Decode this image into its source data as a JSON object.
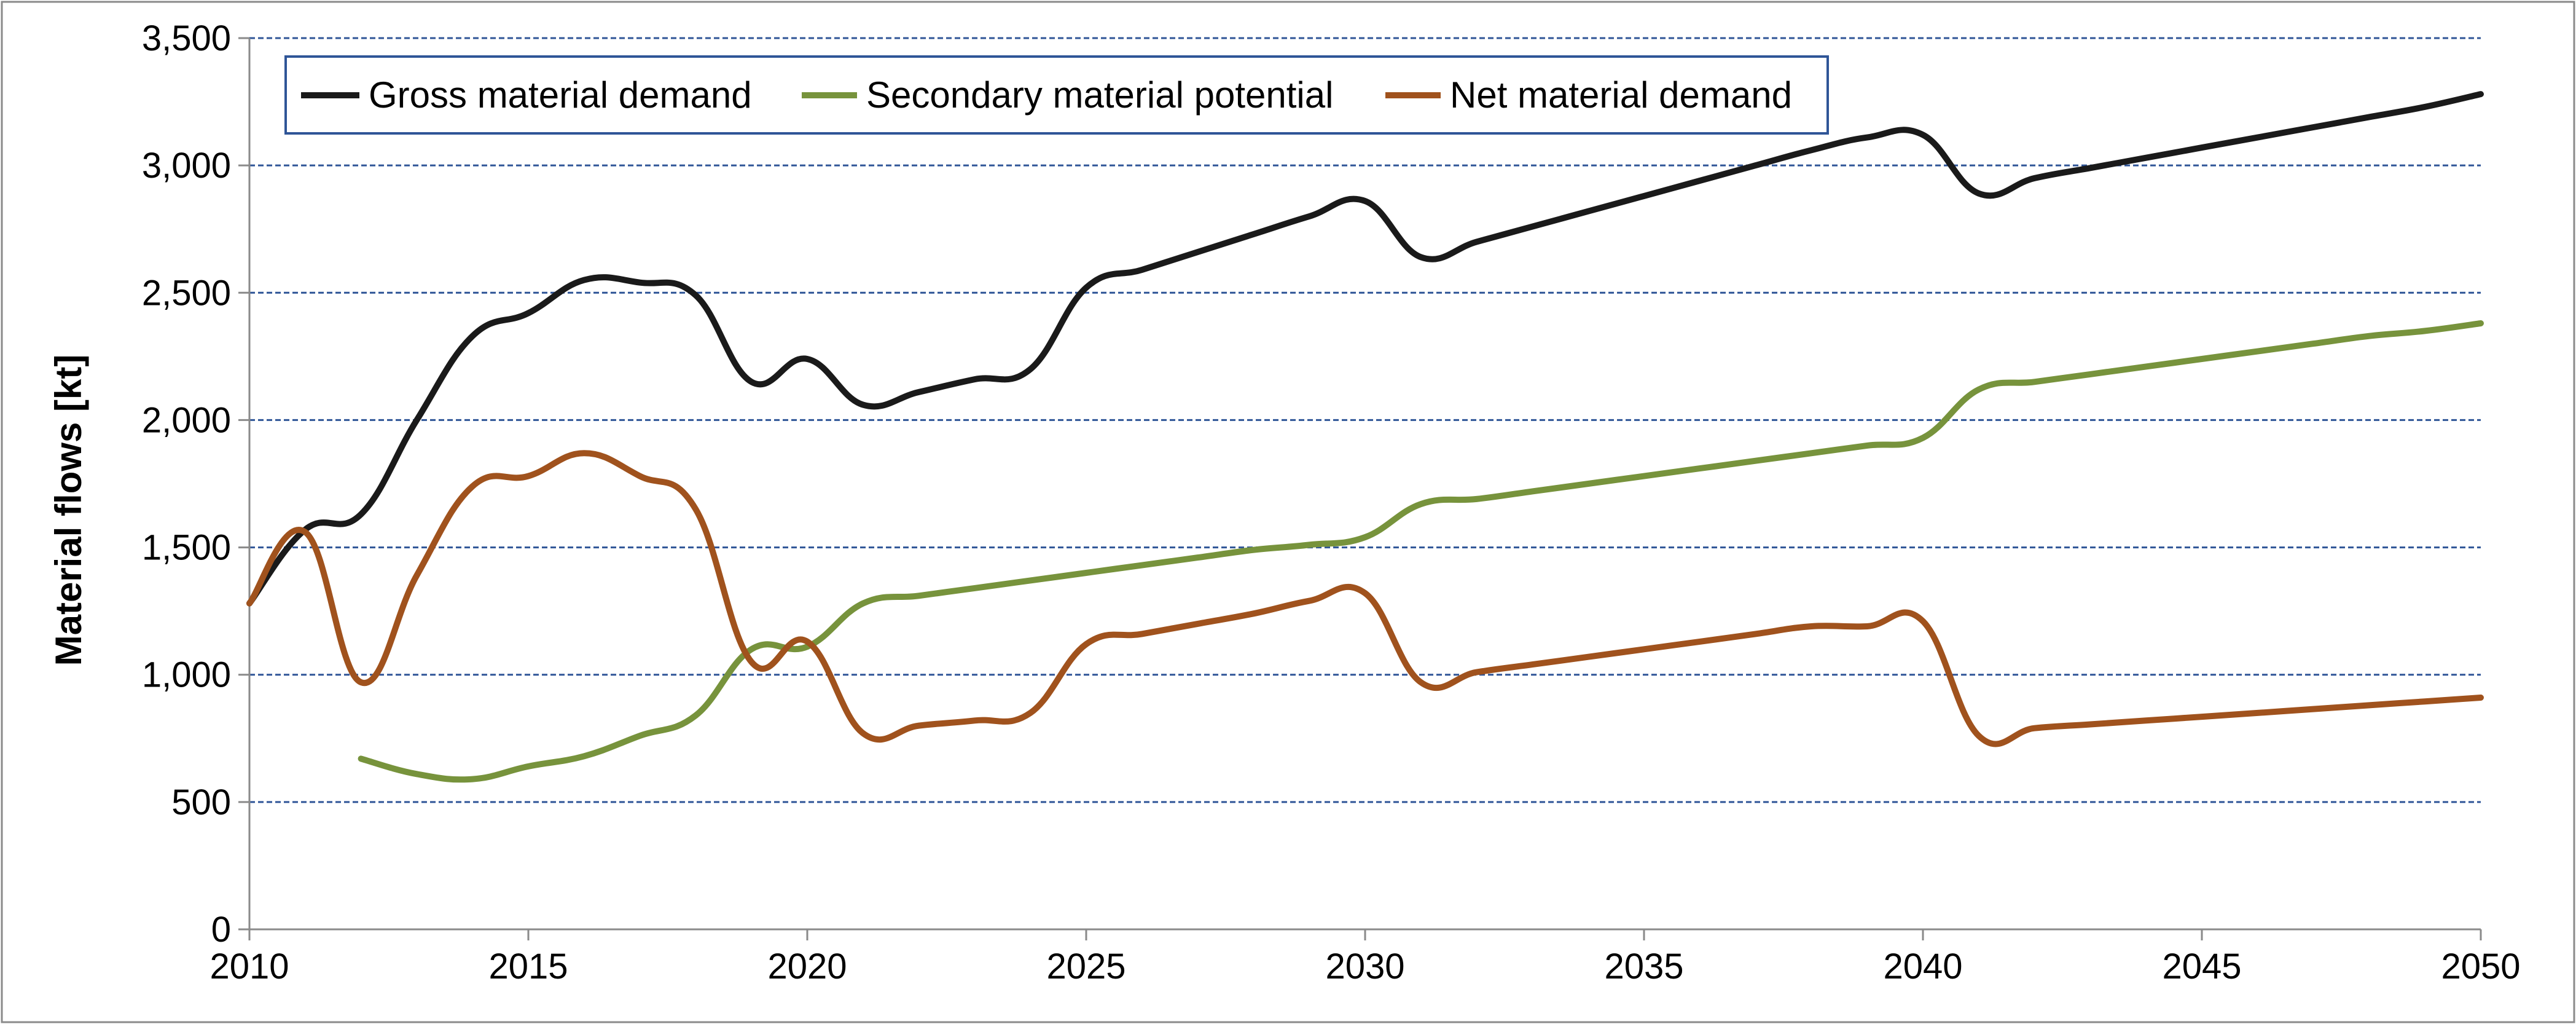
{
  "chart_data": {
    "type": "line",
    "title": "",
    "xlabel": "",
    "ylabel": "Material flows [kt]",
    "xlim": [
      2010,
      2050
    ],
    "ylim": [
      0,
      3500
    ],
    "x_ticks": [
      "2010",
      "2015",
      "2020",
      "2025",
      "2030",
      "2035",
      "2040",
      "2045",
      "2050"
    ],
    "y_ticks": [
      "0",
      "500",
      "1,000",
      "1,500",
      "2,000",
      "2,500",
      "3,000",
      "3,500"
    ],
    "grid": "horizontal dashed",
    "legend_position": "top-left",
    "series": [
      {
        "name": "Gross material demand",
        "color": "#1a1a1a",
        "x": [
          2010,
          2011,
          2012,
          2013,
          2014,
          2015,
          2016,
          2017,
          2018,
          2019,
          2020,
          2021,
          2022,
          2023,
          2024,
          2025,
          2026,
          2027,
          2028,
          2029,
          2030,
          2031,
          2032,
          2033,
          2034,
          2035,
          2036,
          2037,
          2038,
          2039,
          2040,
          2041,
          2042,
          2043,
          2044,
          2045,
          2046,
          2047,
          2048,
          2049,
          2050
        ],
        "values": [
          1280,
          1570,
          1630,
          2000,
          2330,
          2420,
          2550,
          2540,
          2490,
          2150,
          2240,
          2060,
          2110,
          2160,
          2200,
          2520,
          2590,
          2660,
          2730,
          2800,
          2860,
          2640,
          2700,
          2760,
          2820,
          2880,
          2940,
          3000,
          3060,
          3110,
          3120,
          2890,
          2950,
          2990,
          3030,
          3070,
          3110,
          3150,
          3190,
          3230,
          3280
        ]
      },
      {
        "name": "Secondary material potential",
        "color": "#77933c",
        "x": [
          2012,
          2013,
          2014,
          2015,
          2016,
          2017,
          2018,
          2019,
          2020,
          2021,
          2022,
          2023,
          2024,
          2025,
          2026,
          2027,
          2028,
          2029,
          2030,
          2031,
          2032,
          2033,
          2034,
          2035,
          2036,
          2037,
          2038,
          2039,
          2040,
          2041,
          2042,
          2043,
          2044,
          2045,
          2046,
          2047,
          2048,
          2049,
          2050
        ],
        "values": [
          670,
          610,
          590,
          640,
          680,
          760,
          840,
          1100,
          1110,
          1280,
          1310,
          1340,
          1370,
          1400,
          1430,
          1460,
          1490,
          1510,
          1540,
          1670,
          1690,
          1720,
          1750,
          1780,
          1810,
          1840,
          1870,
          1900,
          1930,
          2120,
          2150,
          2180,
          2210,
          2240,
          2270,
          2300,
          2330,
          2350,
          2380
        ]
      },
      {
        "name": "Net material demand",
        "color": "#a0521d",
        "x": [
          2010,
          2011,
          2012,
          2013,
          2014,
          2015,
          2016,
          2017,
          2018,
          2019,
          2020,
          2021,
          2022,
          2023,
          2024,
          2025,
          2026,
          2027,
          2028,
          2029,
          2030,
          2031,
          2032,
          2033,
          2034,
          2035,
          2036,
          2037,
          2038,
          2039,
          2040,
          2041,
          2042,
          2043,
          2044,
          2045,
          2046,
          2047,
          2048,
          2049,
          2050
        ],
        "values": [
          1280,
          1560,
          970,
          1390,
          1740,
          1780,
          1870,
          1780,
          1650,
          1050,
          1130,
          770,
          800,
          820,
          850,
          1120,
          1160,
          1200,
          1240,
          1290,
          1320,
          970,
          1010,
          1040,
          1070,
          1100,
          1130,
          1160,
          1190,
          1190,
          1210,
          760,
          790,
          805,
          820,
          835,
          850,
          865,
          880,
          895,
          910
        ]
      }
    ]
  }
}
